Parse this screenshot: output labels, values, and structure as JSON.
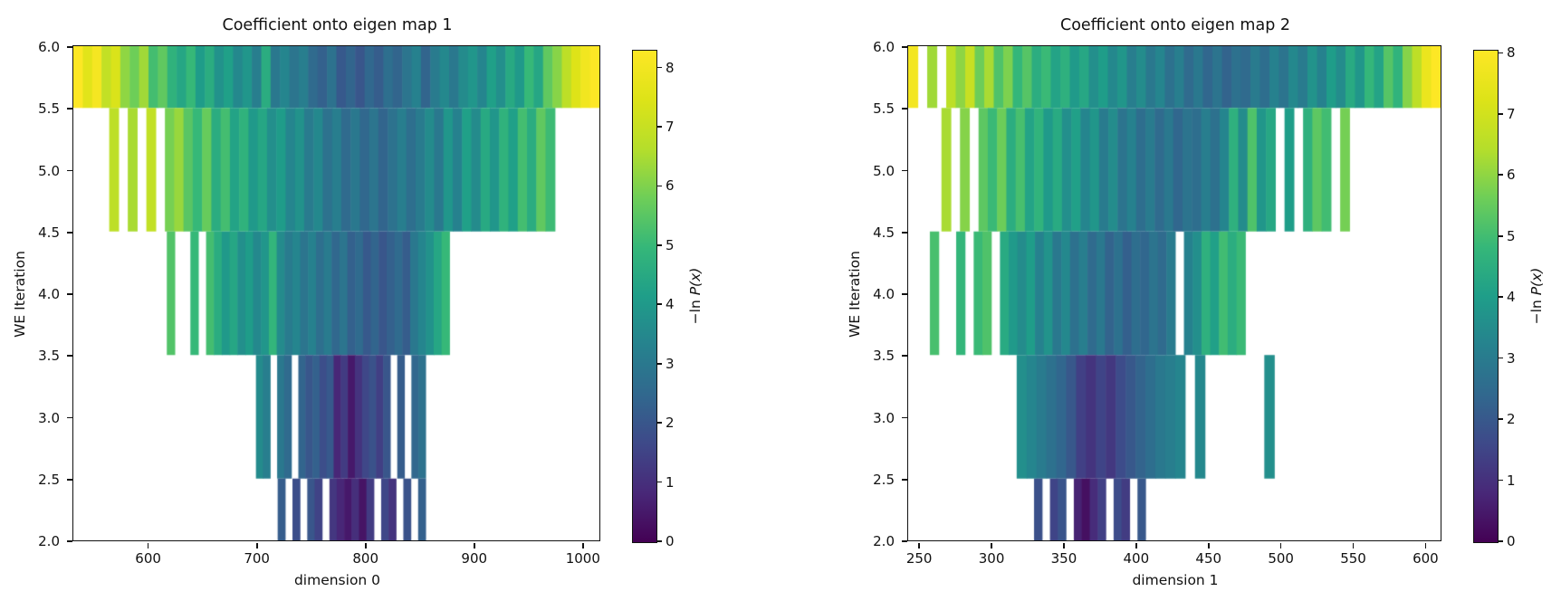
{
  "page": {
    "background": "#ffffff"
  },
  "chart_data": {
    "type": "heatmap",
    "colormap": {
      "name": "viridis",
      "stops": [
        "#440154",
        "#482878",
        "#3e4989",
        "#31688e",
        "#26828e",
        "#1f9e89",
        "#35b779",
        "#6ece58",
        "#b5de2b",
        "#dde318",
        "#fde725"
      ],
      "gap_color": "#ffffff"
    },
    "charts": [
      {
        "title": "Coefficient onto eigen map 1",
        "xlabel": "dimension 0",
        "ylabel": "WE Iteration",
        "xlim": [
          532,
          1016
        ],
        "ylim": [
          2.0,
          6.0
        ],
        "xticks": [
          600,
          700,
          800,
          900,
          1000
        ],
        "xtick_labels": [
          "600",
          "700",
          "800",
          "900",
          "1000"
        ],
        "yticks": [
          6.0,
          5.5,
          5.0,
          4.5,
          4.0,
          3.5,
          3.0,
          2.5,
          2.0
        ],
        "ytick_labels": [
          "6.0",
          "5.5",
          "5.0",
          "4.5",
          "4.0",
          "3.5",
          "3.0",
          "2.5",
          "2.0"
        ],
        "colorbar": {
          "label_pre": "−ln ",
          "label_var": "P",
          "label_rest": "(x)",
          "ticks": [
            0,
            1,
            2,
            3,
            4,
            5,
            6,
            7,
            8
          ],
          "vmin": 0,
          "vmax": 8.3
        },
        "bands": [
          {
            "y0": 5.5,
            "y1": 6.0,
            "x0": 532,
            "x1": 1016,
            "values": [
              8.3,
              7.6,
              8.1,
              6.9,
              7.4,
              6.2,
              5.8,
              6.4,
              5.2,
              5.6,
              4.8,
              4.4,
              5.0,
              4.1,
              4.6,
              3.8,
              4.2,
              3.5,
              3.9,
              3.2,
              4.6,
              3.0,
              3.4,
              2.9,
              3.2,
              2.6,
              2.3,
              2.8,
              2.1,
              2.4,
              2.0,
              2.5,
              2.2,
              2.7,
              2.4,
              2.9,
              3.3,
              2.4,
              3.1,
              3.5,
              3.0,
              3.6,
              3.9,
              3.4,
              4.2,
              3.7,
              4.5,
              4.0,
              5.0,
              4.4,
              5.6,
              6.1,
              6.8,
              7.5,
              8.0,
              8.3
            ]
          },
          {
            "y0": 4.5,
            "y1": 5.5,
            "x0": 565,
            "x1": 975,
            "values": [
              6.8,
              null,
              6.5,
              null,
              6.9,
              null,
              5.9,
              6.3,
              5.5,
              5.0,
              5.7,
              4.6,
              5.2,
              4.3,
              4.8,
              4.0,
              4.4,
              3.7,
              4.1,
              3.4,
              3.8,
              3.1,
              3.5,
              2.8,
              3.2,
              2.6,
              3.0,
              2.5,
              2.9,
              2.4,
              2.8,
              3.2,
              2.7,
              3.1,
              3.6,
              3.0,
              3.9,
              3.3,
              4.2,
              3.6,
              4.5,
              3.9,
              4.8,
              4.2,
              5.2,
              4.6,
              5.6,
              5.1
            ]
          },
          {
            "y0": 3.5,
            "y1": 4.5,
            "x0": 618,
            "x1": 878,
            "values": [
              5.4,
              null,
              null,
              5.0,
              null,
              5.2,
              4.6,
              4.0,
              4.4,
              3.7,
              4.1,
              3.5,
              3.9,
              4.9,
              3.6,
              3.1,
              3.4,
              2.9,
              3.3,
              2.7,
              3.1,
              2.5,
              2.9,
              2.3,
              2.6,
              2.1,
              2.4,
              2.0,
              2.3,
              2.6,
              2.2,
              3.0,
              3.4,
              3.8,
              4.4,
              5.0
            ]
          },
          {
            "y0": 2.5,
            "y1": 3.5,
            "x0": 700,
            "x1": 856,
            "values": [
              3.6,
              3.2,
              null,
              3.0,
              2.6,
              null,
              2.4,
              2.0,
              2.3,
              1.8,
              2.1,
              0.8,
              1.3,
              0.5,
              1.1,
              1.6,
              1.9,
              1.4,
              2.0,
              null,
              2.2,
              null,
              2.5,
              2.8
            ]
          },
          {
            "y0": 2.0,
            "y1": 2.5,
            "x0": 720,
            "x1": 856,
            "values": [
              2.2,
              null,
              1.8,
              null,
              2.0,
              1.5,
              null,
              1.2,
              0.8,
              0.5,
              1.0,
              0.4,
              1.3,
              null,
              1.6,
              1.1,
              null,
              1.9,
              null,
              2.3
            ]
          }
        ]
      },
      {
        "title": "Coefficient onto eigen map 2",
        "xlabel": "dimension 1",
        "ylabel": "WE Iteration",
        "xlim": [
          243,
          611
        ],
        "ylim": [
          2.0,
          6.0
        ],
        "xticks": [
          250,
          300,
          350,
          400,
          450,
          500,
          550,
          600
        ],
        "xtick_labels": [
          "250",
          "300",
          "350",
          "400",
          "450",
          "500",
          "550",
          "600"
        ],
        "yticks": [
          6.0,
          5.5,
          5.0,
          4.5,
          4.0,
          3.5,
          3.0,
          2.5,
          2.0
        ],
        "ytick_labels": [
          "6.0",
          "5.5",
          "5.0",
          "4.5",
          "4.0",
          "3.5",
          "3.0",
          "2.5",
          "2.0"
        ],
        "colorbar": {
          "label_pre": "−ln ",
          "label_var": "P",
          "label_rest": "(x)",
          "ticks": [
            0,
            1,
            2,
            3,
            4,
            5,
            6,
            7,
            8
          ],
          "vmin": 0,
          "vmax": 8.05
        },
        "bands": [
          {
            "y0": 5.5,
            "y1": 6.0,
            "x0": 243,
            "x1": 611,
            "values": [
              7.8,
              null,
              6.2,
              null,
              6.6,
              6.0,
              6.8,
              5.6,
              6.3,
              5.2,
              5.8,
              4.8,
              5.3,
              4.5,
              4.9,
              4.2,
              4.6,
              3.9,
              4.3,
              3.6,
              4.0,
              3.4,
              3.8,
              3.1,
              3.5,
              2.9,
              3.3,
              2.7,
              3.1,
              2.5,
              2.9,
              2.4,
              2.8,
              2.3,
              2.7,
              2.5,
              3.0,
              2.6,
              3.2,
              2.8,
              3.4,
              3.0,
              3.7,
              3.2,
              4.0,
              3.5,
              4.4,
              3.8,
              4.8,
              4.2,
              5.3,
              4.7,
              5.9,
              6.6,
              7.6,
              8.1
            ]
          },
          {
            "y0": 4.5,
            "y1": 5.5,
            "x0": 266,
            "x1": 548,
            "values": [
              6.3,
              null,
              5.9,
              null,
              5.4,
              4.9,
              5.6,
              4.5,
              5.1,
              4.2,
              4.7,
              3.9,
              4.4,
              3.6,
              4.1,
              3.3,
              3.8,
              3.0,
              3.5,
              2.8,
              3.2,
              2.6,
              3.0,
              2.5,
              2.9,
              2.4,
              2.8,
              2.6,
              3.1,
              2.7,
              3.3,
              4.6,
              3.5,
              5.2,
              3.8,
              4.3,
              null,
              4.0,
              null,
              4.6,
              5.4,
              5.0,
              null,
              5.7
            ]
          },
          {
            "y0": 3.5,
            "y1": 4.5,
            "x0": 258,
            "x1": 476,
            "values": [
              5.1,
              null,
              null,
              4.8,
              null,
              4.9,
              5.2,
              null,
              4.4,
              3.9,
              3.5,
              4.0,
              3.2,
              3.7,
              2.9,
              3.4,
              2.7,
              3.1,
              2.5,
              2.9,
              2.3,
              2.7,
              2.2,
              2.6,
              2.4,
              2.8,
              2.5,
              3.0,
              null,
              3.2,
              3.6,
              4.6,
              4.1,
              5.0,
              4.5,
              4.9
            ]
          },
          {
            "y0": 2.5,
            "y1": 3.5,
            "x0": 318,
            "x1": 496,
            "values": [
              3.6,
              3.3,
              3.0,
              2.7,
              2.4,
              2.0,
              1.4,
              1.1,
              1.5,
              1.2,
              1.7,
              2.0,
              2.3,
              2.6,
              2.9,
              3.1,
              3.3,
              null,
              3.4,
              null,
              null,
              null,
              null,
              null,
              null,
              3.6
            ]
          },
          {
            "y0": 2.0,
            "y1": 2.5,
            "x0": 330,
            "x1": 407,
            "values": [
              1.8,
              null,
              1.5,
              1.9,
              null,
              0.7,
              0.3,
              0.9,
              1.4,
              null,
              1.7,
              1.3,
              null,
              2.0
            ]
          }
        ]
      }
    ]
  }
}
